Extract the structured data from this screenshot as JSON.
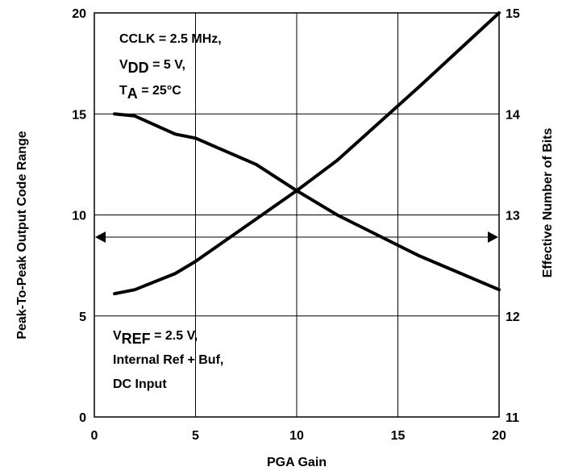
{
  "chart_data": {
    "type": "line",
    "title": "",
    "xlabel": "PGA Gain",
    "ylabel_left": "Peak-To-Peak Output Code Range",
    "ylabel_right": "Effective Number of Bits",
    "xlim": [
      0,
      20
    ],
    "ylim_left": [
      0,
      20
    ],
    "ylim_right": [
      11,
      15
    ],
    "x_ticks": [
      "0",
      "5",
      "10",
      "15",
      "20"
    ],
    "y_left_ticks": [
      "0",
      "5",
      "10",
      "15",
      "20"
    ],
    "y_right_ticks": [
      "11",
      "12",
      "13",
      "14",
      "15"
    ],
    "grid": true,
    "series": [
      {
        "axis": "left",
        "x": [
          1,
          2,
          4,
          5,
          8,
          10,
          12,
          16,
          20
        ],
        "values": [
          6.1,
          6.3,
          7.1,
          7.7,
          9.8,
          11.2,
          12.7,
          16.3,
          20
        ]
      },
      {
        "axis": "right",
        "x": [
          1,
          2,
          4,
          5,
          8,
          10,
          12,
          16,
          20
        ],
        "values": [
          14.0,
          13.98,
          13.8,
          13.76,
          13.5,
          13.24,
          13.0,
          12.6,
          12.26
        ]
      }
    ],
    "arrow_level_left": 8.9,
    "annotations": {
      "top_left": [
        {
          "main": "CCLK = 2.5 MHz,"
        },
        {
          "main": "V",
          "sub": "DD",
          "rest": " = 5 V,"
        },
        {
          "main": "T",
          "sub": "A",
          "rest": " = 25°C"
        }
      ],
      "bottom_left": [
        {
          "main": "V",
          "sub": "REF",
          "rest": " = 2.5 V,"
        },
        {
          "main": "Internal Ref + Buf,"
        },
        {
          "main": "DC Input"
        }
      ]
    }
  }
}
